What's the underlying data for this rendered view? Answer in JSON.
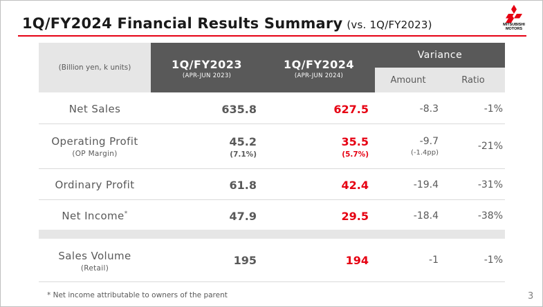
{
  "header": {
    "title": "1Q/FY2024 Financial Results Summary",
    "subtitle": "(vs. 1Q/FY2023)",
    "logo_text_1": "MITSUBISHI",
    "logo_text_2": "MOTORS",
    "accent_color": "#e60012"
  },
  "table": {
    "unit_label": "(Billion yen, k units)",
    "columns": {
      "prev": {
        "title": "1Q/FY2023",
        "period": "(APR-JUN 2023)"
      },
      "curr": {
        "title": "1Q/FY2024",
        "period": "(APR-JUN 2024)"
      },
      "variance": "Variance",
      "amount": "Amount",
      "ratio": "Ratio"
    },
    "rows": [
      {
        "label": "Net Sales",
        "sub": "",
        "prev": "635.8",
        "prev_sub": "",
        "curr": "627.5",
        "curr_sub": "",
        "amount": "-8.3",
        "amount_sub": "",
        "ratio": "-1%"
      },
      {
        "label": "Operating Profit",
        "sub": "(OP Margin)",
        "prev": "45.2",
        "prev_sub": "(7.1%)",
        "curr": "35.5",
        "curr_sub": "(5.7%)",
        "amount": "-9.7",
        "amount_sub": "(-1.4pp)",
        "ratio": "-21%"
      },
      {
        "label": "Ordinary Profit",
        "sub": "",
        "prev": "61.8",
        "prev_sub": "",
        "curr": "42.4",
        "curr_sub": "",
        "amount": "-19.4",
        "amount_sub": "",
        "ratio": "-31%"
      },
      {
        "label": "Net Income",
        "label_sup": "*",
        "sub": "",
        "prev": "47.9",
        "prev_sub": "",
        "curr": "29.5",
        "curr_sub": "",
        "amount": "-18.4",
        "amount_sub": "",
        "ratio": "-38%"
      },
      {
        "label": "Sales Volume",
        "sub": "(Retail)",
        "prev": "195",
        "prev_sub": "",
        "curr": "194",
        "curr_sub": "",
        "amount": "-1",
        "amount_sub": "",
        "ratio": "-1%"
      }
    ]
  },
  "footnote": "* Net income attributable to owners of the parent",
  "page_number": "3"
}
